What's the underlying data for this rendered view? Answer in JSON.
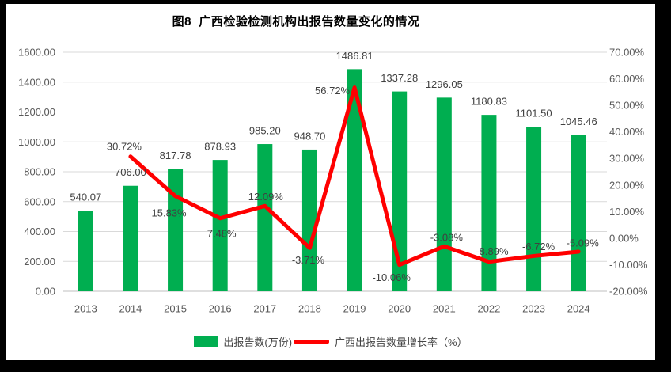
{
  "title": "图8  广西检验检测机构出报告数量变化的情况",
  "legend": [
    {
      "label": "出报告数(万份)",
      "swatch": "bar",
      "color": "#00AE50"
    },
    {
      "label": "广西出报告数量增长率（%）",
      "swatch": "line",
      "color": "#FF0000"
    }
  ],
  "chart_data": {
    "type": "bar",
    "subtype": "bar+line combo, dual axis",
    "title": "图8  广西检验检测机构出报告数量变化的情况",
    "categories": [
      "2013",
      "2014",
      "2015",
      "2016",
      "2017",
      "2018",
      "2019",
      "2020",
      "2021",
      "2022",
      "2023",
      "2024"
    ],
    "series": [
      {
        "name": "出报告数(万份)",
        "type": "bar",
        "axis": "left",
        "color": "#00AE50",
        "values": [
          540.07,
          706.0,
          817.78,
          878.93,
          985.2,
          948.7,
          1486.81,
          1337.28,
          1296.05,
          1180.83,
          1101.5,
          1045.46
        ],
        "data_labels": [
          "540.07",
          "706.00",
          "817.78",
          "878.93",
          "985.20",
          "948.70",
          "1486.81",
          "1337.28",
          "1296.05",
          "1180.83",
          "1101.50",
          "1045.46"
        ]
      },
      {
        "name": "广西出报告数量增长率（%）",
        "type": "line",
        "axis": "right",
        "color": "#FF0000",
        "values": [
          null,
          30.72,
          15.83,
          7.48,
          12.09,
          -3.71,
          56.72,
          -10.06,
          -3.08,
          -8.89,
          -6.72,
          -5.09
        ],
        "data_labels": [
          "",
          "30.72%",
          "15.83%",
          "7.48%",
          "12.09%",
          "-3.71%",
          "56.72%",
          "-10.06%",
          "-3.08%",
          "-8.89%",
          "-6.72%",
          "-5.09%"
        ],
        "label_offsets": [
          [
            0,
            0
          ],
          [
            -8,
            -13
          ],
          [
            -8,
            21
          ],
          [
            2,
            19
          ],
          [
            1,
            -12
          ],
          [
            -2,
            15
          ],
          [
            -28,
            4
          ],
          [
            -10,
            16
          ],
          [
            3,
            -11
          ],
          [
            4,
            -13
          ],
          [
            6,
            -12
          ],
          [
            5,
            -11
          ]
        ]
      }
    ],
    "left_axis": {
      "min": 0,
      "max": 1600,
      "step": 200,
      "tick_labels": [
        "0.00",
        "200.00",
        "400.00",
        "600.00",
        "800.00",
        "1000.00",
        "1200.00",
        "1400.00",
        "1600.00"
      ]
    },
    "right_axis": {
      "min": -20,
      "max": 70,
      "step": 10,
      "tick_labels": [
        "-20.00%",
        "-10.00%",
        "0.00%",
        "10.00%",
        "20.00%",
        "30.00%",
        "40.00%",
        "50.00%",
        "60.00%",
        "70.00%"
      ]
    },
    "grid": true,
    "legend_position": "bottom",
    "colors": {
      "grid": "#D9D9D9",
      "axis_line": "#BFBFBF",
      "axis_text": "#595959",
      "data_label_text": "#404040",
      "background": "#FFFFFF",
      "frame": "#000000"
    }
  }
}
